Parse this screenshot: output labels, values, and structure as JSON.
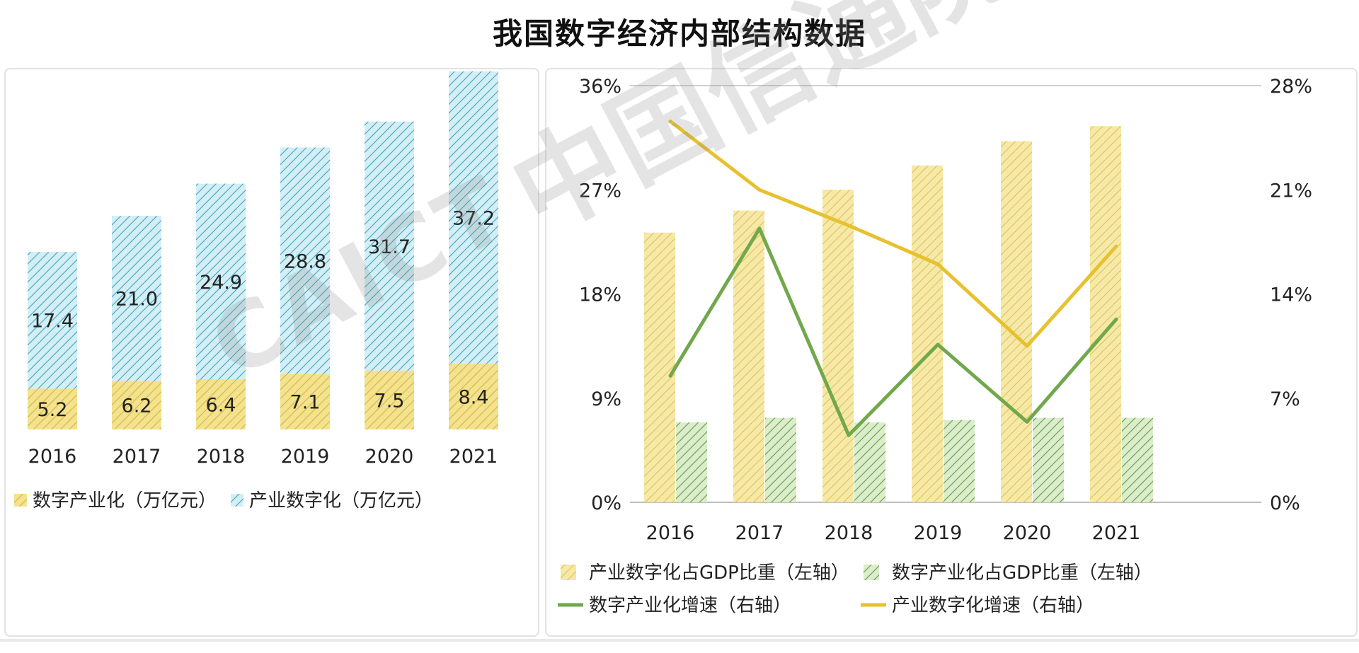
{
  "title": "我国数字经济内部结构数据",
  "watermark": {
    "latin": "CAICT",
    "chinese": "中国信通院"
  },
  "colors": {
    "yellow_fill": "#f3e28e",
    "yellow_stroke": "#d7b945",
    "cyan_fill": "#bfe6ef",
    "cyan_stroke": "#3ea5c0",
    "green_fill": "#c9e3b0",
    "green_stroke": "#6aa24a",
    "green_line": "#72a84c",
    "yellow_line": "#e7c12e",
    "axis_text": "#222222",
    "gridline": "#cfcfcf"
  },
  "chart_data": [
    {
      "type": "bar",
      "stacked": true,
      "categories": [
        "2016",
        "2017",
        "2018",
        "2019",
        "2020",
        "2021"
      ],
      "series": [
        {
          "name": "数字产业化（万亿元）",
          "values": [
            5.2,
            6.2,
            6.4,
            7.1,
            7.5,
            8.4
          ],
          "labels": [
            "5.2",
            "6.2",
            "6.4",
            "7.1",
            "7.5",
            "8.4"
          ]
        },
        {
          "name": "产业数字化（万亿元）",
          "values": [
            17.4,
            21.0,
            24.9,
            28.8,
            31.7,
            37.2
          ],
          "labels": [
            "17.4",
            "21.0",
            "24.9",
            "28.8",
            "31.7",
            "37.2"
          ]
        }
      ],
      "ylim": [
        0,
        48
      ],
      "grid": false,
      "legend": "bottom"
    },
    {
      "type": "bar",
      "categories": [
        "2016",
        "2017",
        "2018",
        "2019",
        "2020",
        "2021"
      ],
      "left_axis": {
        "ylim": [
          0,
          36
        ],
        "ticks": [
          "0%",
          "9%",
          "18%",
          "27%",
          "36%"
        ]
      },
      "right_axis": {
        "ylim": [
          0,
          28
        ],
        "ticks": [
          "0%",
          "7%",
          "14%",
          "21%",
          "28%"
        ]
      },
      "series": [
        {
          "name": "产业数字化占GDP比重（左轴）",
          "type": "bar",
          "axis": "left",
          "values": [
            23.3,
            25.2,
            27.0,
            29.1,
            31.2,
            32.5
          ]
        },
        {
          "name": "数字产业化占GDP比重（左轴）",
          "type": "bar",
          "axis": "left",
          "values": [
            6.9,
            7.3,
            6.9,
            7.1,
            7.3,
            7.3
          ]
        },
        {
          "name": "数字产业化增速（右轴）",
          "type": "line",
          "axis": "right",
          "values": [
            8.5,
            18.4,
            4.5,
            10.6,
            5.4,
            12.3
          ]
        },
        {
          "name": "产业数字化增速（右轴）",
          "type": "line",
          "axis": "right",
          "values": [
            25.6,
            21.0,
            18.6,
            16.0,
            10.5,
            17.2
          ]
        }
      ],
      "grid": "top and bottom lines",
      "legend": "bottom"
    }
  ]
}
